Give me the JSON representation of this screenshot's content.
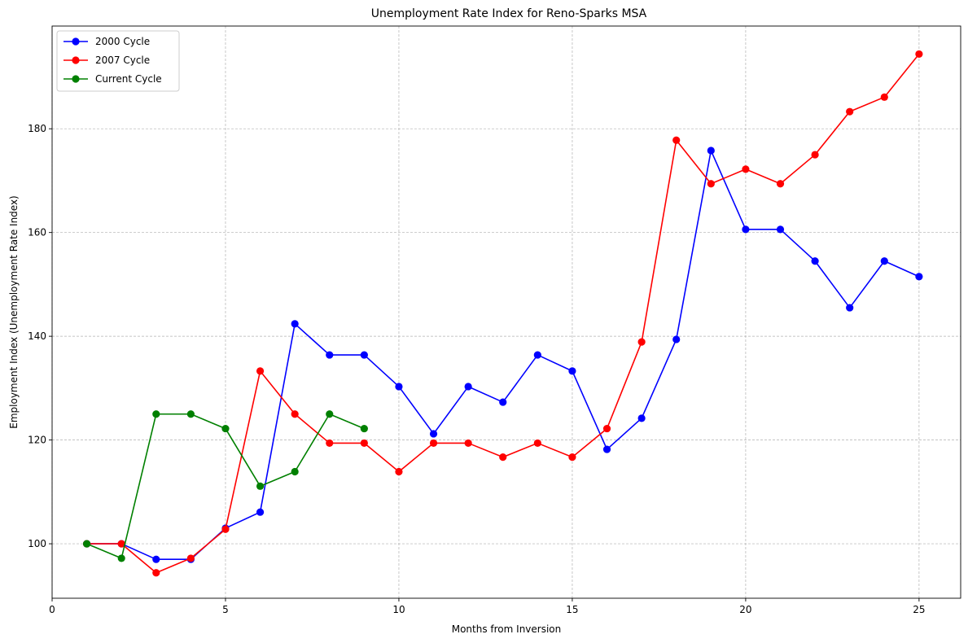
{
  "chart_data": {
    "type": "line",
    "title": "Unemployment Rate Index for Reno-Sparks MSA",
    "xlabel": "Months from Inversion",
    "ylabel": "Employment Index (Unemployment Rate Index)",
    "xlim": [
      0,
      26.2
    ],
    "ylim": [
      89.5,
      199.8
    ],
    "xticks": [
      0,
      5,
      10,
      15,
      20,
      25
    ],
    "yticks": [
      100,
      120,
      140,
      160,
      180
    ],
    "grid": true,
    "legend_position": "upper-left",
    "series": [
      {
        "name": "2000 Cycle",
        "color": "#0000ff",
        "x": [
          1,
          2,
          3,
          4,
          5,
          6,
          7,
          8,
          9,
          10,
          11,
          12,
          13,
          14,
          15,
          16,
          17,
          18,
          19,
          20,
          21,
          22,
          23,
          24,
          25
        ],
        "y": [
          100,
          100,
          97,
          97,
          103,
          106.1,
          142.4,
          136.4,
          136.4,
          130.3,
          121.2,
          130.3,
          127.3,
          136.4,
          133.3,
          118.2,
          124.2,
          139.4,
          175.8,
          160.6,
          160.6,
          154.5,
          145.5,
          154.5,
          151.5
        ]
      },
      {
        "name": "2007 Cycle",
        "color": "#ff0000",
        "x": [
          1,
          2,
          3,
          4,
          5,
          6,
          7,
          8,
          9,
          10,
          11,
          12,
          13,
          14,
          15,
          16,
          17,
          18,
          19,
          20,
          21,
          22,
          23,
          24,
          25
        ],
        "y": [
          100,
          100,
          94.4,
          97.2,
          102.8,
          133.3,
          125,
          119.4,
          119.4,
          113.9,
          119.4,
          119.4,
          116.7,
          119.4,
          116.7,
          122.2,
          138.9,
          177.8,
          169.4,
          172.2,
          169.4,
          175,
          183.3,
          186.1,
          194.4
        ]
      },
      {
        "name": "Current Cycle",
        "color": "#008000",
        "x": [
          1,
          2,
          3,
          4,
          5,
          6,
          7,
          8,
          9
        ],
        "y": [
          100,
          97.2,
          125,
          125,
          122.2,
          111.1,
          113.9,
          125,
          122.2
        ]
      }
    ]
  }
}
